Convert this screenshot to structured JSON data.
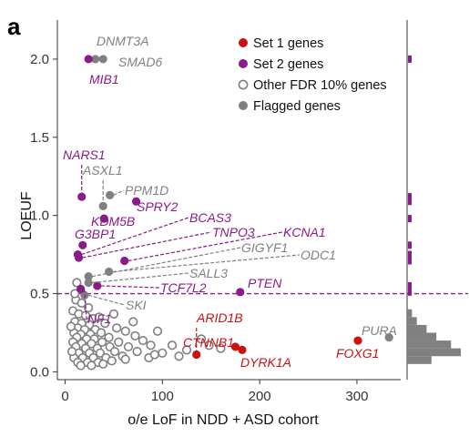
{
  "panel_label": "a",
  "chart_data": {
    "type": "scatter",
    "xlabel": "o/e LoF in NDD + ASD cohort",
    "ylabel": "LOEUF",
    "xlim": [
      -8,
      345
    ],
    "ylim": [
      -0.05,
      2.25
    ],
    "x_ticks": [
      0,
      100,
      200,
      300
    ],
    "y_ticks": [
      0.0,
      0.5,
      1.0,
      1.5,
      2.0
    ],
    "x_tick_labels": [
      "0",
      "100",
      "200",
      "300"
    ],
    "y_tick_labels": [
      "0.0",
      "0.5",
      "1.0",
      "1.5",
      "2.0"
    ],
    "threshold_line": {
      "y": 0.5,
      "color": "#8b1a8b",
      "style": "dashed"
    },
    "legend": {
      "position": "top-right",
      "entries": [
        {
          "label": "Set 1 genes",
          "color": "#cc1111",
          "marker": "filled"
        },
        {
          "label": "Set 2 genes",
          "color": "#8b1a8b",
          "marker": "filled"
        },
        {
          "label": "Other FDR 10% genes",
          "color": "#808080",
          "marker": "open"
        },
        {
          "label": "Flagged genes",
          "color": "#808080",
          "marker": "filled"
        }
      ]
    },
    "colors": {
      "set1": "#cc1111",
      "set2": "#8b1a8b",
      "other": "#808080",
      "flagged": "#808080"
    },
    "series": [
      {
        "name": "Set 1 genes",
        "points": [
          {
            "x": 135,
            "y": 0.11,
            "label": "ARID1B"
          },
          {
            "x": 175,
            "y": 0.16,
            "label": "CTNNB1"
          },
          {
            "x": 182,
            "y": 0.14,
            "label": "DYRK1A"
          },
          {
            "x": 301,
            "y": 0.2,
            "label": "FOXG1"
          }
        ]
      },
      {
        "name": "Set 2 genes",
        "points": [
          {
            "x": 24,
            "y": 2.0,
            "label": "MIB1"
          },
          {
            "x": 17,
            "y": 1.12,
            "label": "NARS1"
          },
          {
            "x": 73,
            "y": 1.09,
            "label": "SPRY2"
          },
          {
            "x": 40,
            "y": 0.98,
            "label": "KDM5B"
          },
          {
            "x": 18,
            "y": 0.81,
            "label": "G3BP1"
          },
          {
            "x": 13,
            "y": 0.75,
            "label": "BCAS3"
          },
          {
            "x": 14,
            "y": 0.73,
            "label": "TNPO3"
          },
          {
            "x": 61,
            "y": 0.71,
            "label": "KCNA1"
          },
          {
            "x": 33,
            "y": 0.55,
            "label": "TCF7L2"
          },
          {
            "x": 180,
            "y": 0.51,
            "label": "PTEN"
          },
          {
            "x": 16,
            "y": 0.53,
            "label": "NF1"
          }
        ]
      },
      {
        "name": "Flagged genes",
        "points": [
          {
            "x": 31,
            "y": 2.0,
            "label": "DNMT3A"
          },
          {
            "x": 39,
            "y": 2.0,
            "label": "SMAD6"
          },
          {
            "x": 39,
            "y": 1.06,
            "label": "ASXL1"
          },
          {
            "x": 46,
            "y": 1.13,
            "label": "PPM1D"
          },
          {
            "x": 24,
            "y": 0.61,
            "label": "GIGYF1"
          },
          {
            "x": 45,
            "y": 0.64,
            "label": "ODC1"
          },
          {
            "x": 24,
            "y": 0.57,
            "label": "SALL3"
          },
          {
            "x": 20,
            "y": 0.49,
            "label": "SKI"
          },
          {
            "x": 333,
            "y": 0.22,
            "label": "PURA"
          }
        ]
      },
      {
        "name": "Other FDR 10% genes",
        "points": [
          {
            "x": 11,
            "y": 0.46
          },
          {
            "x": 17,
            "y": 0.44
          },
          {
            "x": 24,
            "y": 0.41
          },
          {
            "x": 8,
            "y": 0.39
          },
          {
            "x": 14,
            "y": 0.37
          },
          {
            "x": 21,
            "y": 0.36
          },
          {
            "x": 29,
            "y": 0.34
          },
          {
            "x": 35,
            "y": 0.35
          },
          {
            "x": 10,
            "y": 0.32
          },
          {
            "x": 17,
            "y": 0.31
          },
          {
            "x": 25,
            "y": 0.3
          },
          {
            "x": 41,
            "y": 0.31
          },
          {
            "x": 13,
            "y": 0.28
          },
          {
            "x": 20,
            "y": 0.27
          },
          {
            "x": 31,
            "y": 0.27
          },
          {
            "x": 53,
            "y": 0.28
          },
          {
            "x": 9,
            "y": 0.25
          },
          {
            "x": 16,
            "y": 0.24
          },
          {
            "x": 26,
            "y": 0.24
          },
          {
            "x": 37,
            "y": 0.25
          },
          {
            "x": 62,
            "y": 0.26
          },
          {
            "x": 12,
            "y": 0.22
          },
          {
            "x": 22,
            "y": 0.21
          },
          {
            "x": 30,
            "y": 0.21
          },
          {
            "x": 45,
            "y": 0.22
          },
          {
            "x": 72,
            "y": 0.23
          },
          {
            "x": 95,
            "y": 0.26
          },
          {
            "x": 8,
            "y": 0.19
          },
          {
            "x": 17,
            "y": 0.18
          },
          {
            "x": 27,
            "y": 0.18
          },
          {
            "x": 38,
            "y": 0.19
          },
          {
            "x": 55,
            "y": 0.19
          },
          {
            "x": 80,
            "y": 0.2
          },
          {
            "x": 11,
            "y": 0.16
          },
          {
            "x": 21,
            "y": 0.15
          },
          {
            "x": 33,
            "y": 0.15
          },
          {
            "x": 46,
            "y": 0.16
          },
          {
            "x": 65,
            "y": 0.16
          },
          {
            "x": 88,
            "y": 0.17
          },
          {
            "x": 110,
            "y": 0.17
          },
          {
            "x": 14,
            "y": 0.12
          },
          {
            "x": 25,
            "y": 0.12
          },
          {
            "x": 36,
            "y": 0.12
          },
          {
            "x": 51,
            "y": 0.13
          },
          {
            "x": 74,
            "y": 0.13
          },
          {
            "x": 100,
            "y": 0.12
          },
          {
            "x": 125,
            "y": 0.14
          },
          {
            "x": 9,
            "y": 0.09
          },
          {
            "x": 18,
            "y": 0.09
          },
          {
            "x": 29,
            "y": 0.09
          },
          {
            "x": 42,
            "y": 0.09
          },
          {
            "x": 59,
            "y": 0.1
          },
          {
            "x": 86,
            "y": 0.09
          },
          {
            "x": 13,
            "y": 0.06
          },
          {
            "x": 23,
            "y": 0.06
          },
          {
            "x": 34,
            "y": 0.06
          },
          {
            "x": 48,
            "y": 0.07
          },
          {
            "x": 16,
            "y": 0.04
          },
          {
            "x": 27,
            "y": 0.04
          },
          {
            "x": 39,
            "y": 0.05
          },
          {
            "x": 10,
            "y": 0.5
          },
          {
            "x": 12,
            "y": 0.57
          },
          {
            "x": 6,
            "y": 0.29
          },
          {
            "x": 7,
            "y": 0.13
          },
          {
            "x": 70,
            "y": 0.32
          },
          {
            "x": 92,
            "y": 0.11
          },
          {
            "x": 140,
            "y": 0.21
          },
          {
            "x": 148,
            "y": 0.17
          },
          {
            "x": 117,
            "y": 0.1
          },
          {
            "x": 160,
            "y": 0.15
          },
          {
            "x": 62,
            "y": 0.08
          },
          {
            "x": 50,
            "y": 0.37
          }
        ]
      }
    ],
    "marginal_histogram": {
      "orientation": "horizontal",
      "color_bins": "#808080",
      "color_set2_ticks": "#8b1a8b",
      "bins": [
        {
          "y0": 0.05,
          "y1": 0.1,
          "count": 5
        },
        {
          "y0": 0.1,
          "y1": 0.15,
          "count": 11
        },
        {
          "y0": 0.15,
          "y1": 0.2,
          "count": 9
        },
        {
          "y0": 0.2,
          "y1": 0.25,
          "count": 6
        },
        {
          "y0": 0.25,
          "y1": 0.3,
          "count": 4
        },
        {
          "y0": 0.3,
          "y1": 0.35,
          "count": 2
        },
        {
          "y0": 0.35,
          "y1": 0.4,
          "count": 1
        }
      ],
      "set2_ticks": [
        2.0,
        1.12,
        1.09,
        0.98,
        0.81,
        0.75,
        0.73,
        0.71,
        0.55,
        0.53,
        0.51
      ]
    }
  }
}
